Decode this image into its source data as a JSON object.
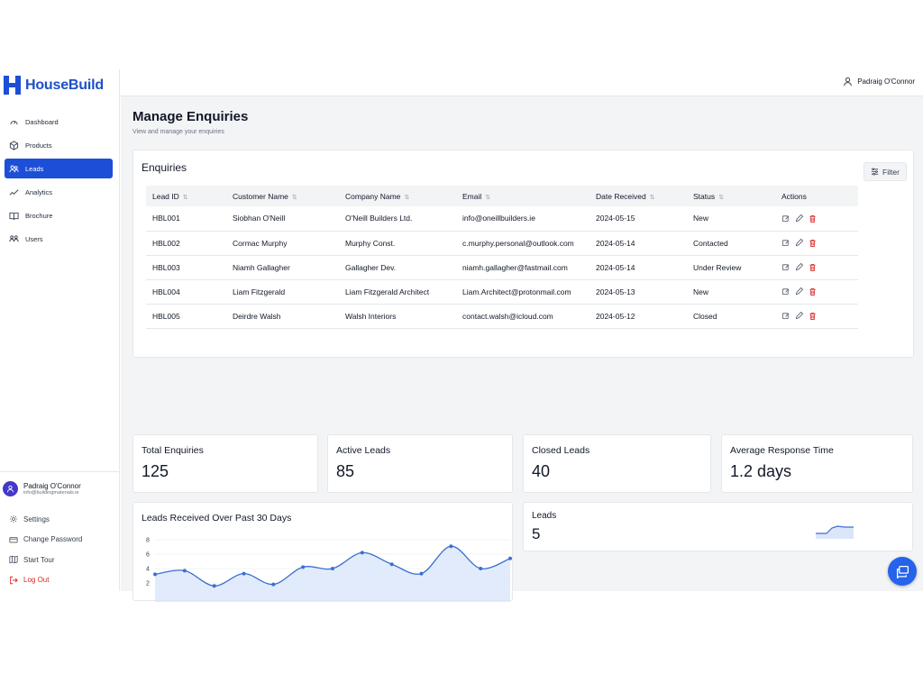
{
  "brand": {
    "name": "HouseBuild",
    "color": "#1d4ed8"
  },
  "sidebar": {
    "items": [
      {
        "label": "Dashboard",
        "icon": "gauge-icon",
        "active": false
      },
      {
        "label": "Products",
        "icon": "box-icon",
        "active": false
      },
      {
        "label": "Leads",
        "icon": "users-icon",
        "active": true
      },
      {
        "label": "Analytics",
        "icon": "chart-line-icon",
        "active": false
      },
      {
        "label": "Brochure",
        "icon": "book-icon",
        "active": false
      },
      {
        "label": "Users",
        "icon": "user-group-icon",
        "active": false
      }
    ],
    "user": {
      "name": "Padraig O'Connor",
      "email": "info@buildingmaterials.ie"
    },
    "links": {
      "settings": "Settings",
      "change_password": "Change Password",
      "start_tour": "Start Tour",
      "logout": "Log Out"
    }
  },
  "header": {
    "user_name": "Padraig O'Connor"
  },
  "page": {
    "title": "Manage Enquiries",
    "subtitle": "View and manage your enquiries"
  },
  "enquiries": {
    "title": "Enquiries",
    "filter_label": "Filter",
    "columns": [
      "Lead ID",
      "Customer Name",
      "Company Name",
      "Email",
      "Date Received",
      "Status",
      "Actions"
    ],
    "rows": [
      [
        "HBL001",
        "Siobhan O'Neill",
        "O'Neill Builders Ltd.",
        "info@oneillbuilders.ie",
        "2024-05-15",
        "New"
      ],
      [
        "HBL002",
        "Cormac Murphy",
        "Murphy Const.",
        "c.murphy.personal@outlook.com",
        "2024-05-14",
        "Contacted"
      ],
      [
        "HBL003",
        "Niamh Gallagher",
        "Gallagher Dev.",
        "niamh.gallagher@fastmail.com",
        "2024-05-14",
        "Under Review"
      ],
      [
        "HBL004",
        "Liam Fitzgerald",
        "Liam Fitzgerald Architect",
        "Liam.Architect@protonmail.com",
        "2024-05-13",
        "New"
      ],
      [
        "HBL005",
        "Deirdre Walsh",
        "Walsh Interiors",
        "contact.walsh@icloud.com",
        "2024-05-12",
        "Closed"
      ]
    ]
  },
  "stats": [
    {
      "label": "Total Enquiries",
      "value": "125"
    },
    {
      "label": "Active Leads",
      "value": "85"
    },
    {
      "label": "Closed Leads",
      "value": "40"
    },
    {
      "label": "Average Response Time",
      "value": "1.2 days"
    }
  ],
  "leads_card": {
    "label": "Leads",
    "value": "5"
  },
  "chart_data": {
    "type": "area",
    "title": "Leads Received Over Past 30 Days",
    "yticks": [
      2,
      4,
      6,
      8
    ],
    "ylim": [
      1,
      8.5
    ],
    "values": [
      3.2,
      3.7,
      1.6,
      3.3,
      1.8,
      4.2,
      4.0,
      6.2,
      4.6,
      3.3,
      7.1,
      4.0,
      5.4
    ],
    "color": "#3b6fd1"
  }
}
